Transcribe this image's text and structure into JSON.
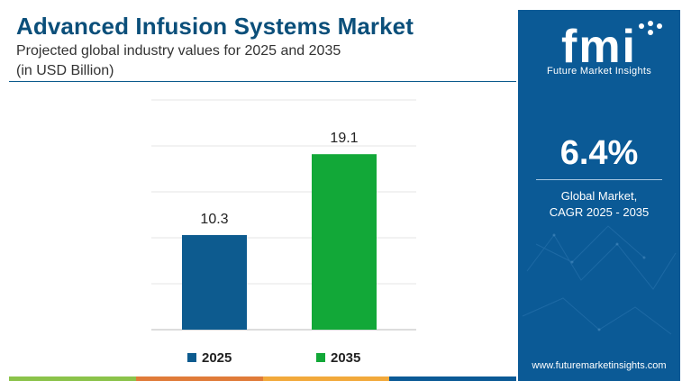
{
  "header": {
    "title": "Advanced Infusion Systems Market",
    "subtitle": "Projected global industry values for 2025 and 2035",
    "unit": "(in USD Billion)"
  },
  "chart_data": {
    "type": "bar",
    "categories": [
      "2025",
      "2035"
    ],
    "values": [
      10.3,
      19.1
    ],
    "value_labels": [
      "10.3",
      "19.1"
    ],
    "colors": [
      "#0d5b8f",
      "#12a838"
    ],
    "ylim": [
      0,
      25
    ],
    "grid": true,
    "legend": {
      "placement": "bottom",
      "entries": [
        {
          "label": "2025",
          "color": "#0d5b8f"
        },
        {
          "label": "2035",
          "color": "#12a838"
        }
      ]
    },
    "title": "Advanced Infusion Systems Market",
    "subtitle": "Projected global industry values for 2025 and 2035",
    "ylabel": "(in USD Billion)",
    "xlabel": ""
  },
  "side_panel": {
    "logo_letters": "fmi",
    "logo_text": "Future Market Insights",
    "cagr_value": "6.4%",
    "cagr_label_line1": "Global Market,",
    "cagr_label_line2": "CAGR 2025 - 2035",
    "website": "www.futuremarketinsights.com",
    "background_color": "#0b5a96"
  },
  "bottom_strip_colors": [
    "#8bc34a",
    "#e07b39",
    "#f2a93b",
    "#0b5a96"
  ]
}
